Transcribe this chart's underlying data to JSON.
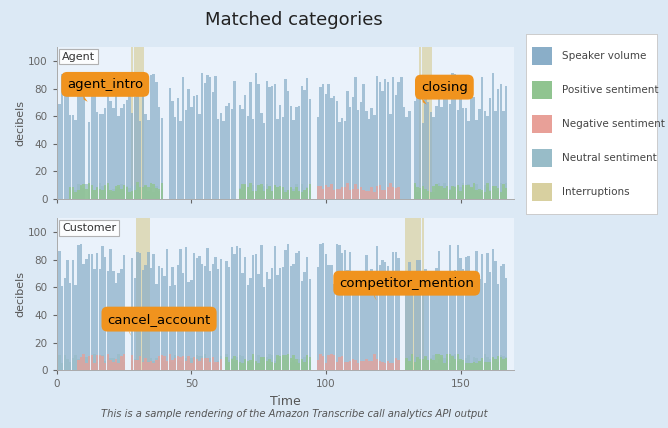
{
  "title": "Matched categories",
  "subtitle": "This is a sample rendering of the Amazon Transcribe call analytics API output",
  "background_color": "#dce9f5",
  "axes_bg_color": "#eaf2fb",
  "xlabel": "Time",
  "ylabel": "decibels",
  "xlim": [
    0,
    170
  ],
  "ylim": [
    0,
    110
  ],
  "yticks": [
    0,
    20,
    40,
    60,
    80,
    100
  ],
  "xticks": [
    0,
    50,
    100,
    150
  ],
  "legend_items": [
    {
      "label": "Speaker volume",
      "color": "#8aaec8"
    },
    {
      "label": "Positive sentiment",
      "color": "#90c490"
    },
    {
      "label": "Negative sentiment",
      "color": "#e8a098"
    },
    {
      "label": "Neutral sentiment",
      "color": "#98bcc8"
    },
    {
      "label": "Interruptions",
      "color": "#d8d0a0"
    }
  ],
  "agent_label": "Agent",
  "customer_label": "Customer",
  "speaker_color": "#8aaec8",
  "positive_color": "#90c490",
  "negative_color": "#e8a098",
  "neutral_color": "#98bcc8",
  "interruption_color": "#d8d0a0",
  "annotation_color": "#f0931e",
  "annotation_text_color": "#000000"
}
